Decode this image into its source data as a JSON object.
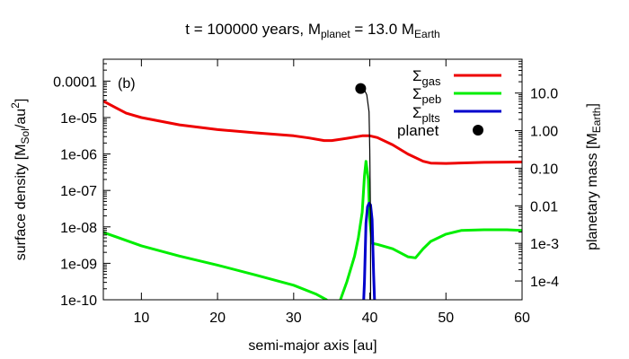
{
  "chart_data": {
    "type": "line",
    "title": {
      "prefix": "t = 100000 years, M",
      "sub1": "planet",
      "mid": " = 13.0 M",
      "sub2": "Earth"
    },
    "panel_label": "(b)",
    "xlabel": "semi-major axis [au]",
    "ylabel_left": {
      "prefix": "surface density [M",
      "sub": "Sol",
      "mid": "/au",
      "sup": "2",
      "suffix": "]"
    },
    "ylabel_right": {
      "prefix": "planetary mass [M",
      "sub": "Earth",
      "suffix": "]"
    },
    "xlim": [
      5,
      60
    ],
    "x_ticks": [
      10,
      20,
      30,
      40,
      50,
      60
    ],
    "x_tick_labels": [
      "10",
      "20",
      "30",
      "40",
      "50",
      "60"
    ],
    "ylim_left_log10": [
      -10,
      -3.4
    ],
    "y_ticks_left_log10": [
      -10,
      -9,
      -8,
      -7,
      -6,
      -5,
      -4
    ],
    "y_tick_labels_left": [
      "1e-10",
      "1e-09",
      "1e-08",
      "1e-07",
      "1e-06",
      "1e-05",
      "0.0001"
    ],
    "ylim_right_log10": [
      -4.5,
      1.9
    ],
    "y_ticks_right_log10": [
      -4,
      -3,
      -2,
      -1,
      0,
      1
    ],
    "y_tick_labels_right": [
      "1e-4",
      "1e-3",
      "0.01",
      "0.10",
      "1.00",
      "10.0"
    ],
    "legend": [
      {
        "key": "gas",
        "base": "Σ",
        "sub": "gas",
        "color": "#ee0000"
      },
      {
        "key": "peb",
        "base": "Σ",
        "sub": "peb",
        "color": "#00ee00"
      },
      {
        "key": "plts",
        "base": "Σ",
        "sub": "plts",
        "color": "#0000cc"
      },
      {
        "key": "planet",
        "label": "planet",
        "color": "#000000"
      }
    ],
    "series": [
      {
        "name": "gas",
        "color": "#ee0000",
        "x": [
          5,
          8,
          10,
          15,
          20,
          25,
          30,
          32,
          34,
          35,
          37,
          39,
          40,
          41,
          43,
          45,
          47,
          48,
          50,
          55,
          60
        ],
        "y_log10": [
          -4.55,
          -4.88,
          -5.0,
          -5.2,
          -5.33,
          -5.42,
          -5.5,
          -5.56,
          -5.63,
          -5.63,
          -5.57,
          -5.5,
          -5.5,
          -5.55,
          -5.75,
          -6.0,
          -6.2,
          -6.25,
          -6.26,
          -6.23,
          -6.22
        ]
      },
      {
        "name": "peb",
        "color": "#00ee00",
        "x": [
          5,
          10,
          15,
          20,
          25,
          30,
          33,
          34.3,
          35,
          36,
          37,
          38,
          38.5,
          39,
          39.3,
          39.5,
          39.8,
          40,
          40.3,
          41,
          43,
          45,
          46,
          47,
          48,
          50,
          52,
          55,
          58,
          60
        ],
        "y_log10": [
          -8.15,
          -8.52,
          -8.8,
          -9.05,
          -9.32,
          -9.6,
          -9.85,
          -10.0,
          -10.2,
          -10.08,
          -9.5,
          -8.8,
          -8.3,
          -7.6,
          -6.6,
          -6.2,
          -6.7,
          -7.8,
          -8.45,
          -8.48,
          -8.6,
          -8.82,
          -8.85,
          -8.6,
          -8.4,
          -8.2,
          -8.1,
          -8.08,
          -8.08,
          -8.1
        ]
      },
      {
        "name": "plts",
        "color": "#0000cc",
        "x": [
          39.1,
          39.3,
          39.5,
          39.7,
          39.9,
          40.1,
          40.3,
          40.5,
          40.7
        ],
        "y_log10": [
          -10.5,
          -9.5,
          -7.9,
          -7.45,
          -7.35,
          -7.4,
          -7.8,
          -9.3,
          -10.5
        ]
      },
      {
        "name": "planet track",
        "color": "#000000",
        "x": [
          38.9,
          39.3,
          39.6,
          39.9,
          40.0,
          40.1,
          40.1
        ],
        "mass_log10": [
          1.12,
          1.08,
          0.95,
          0.5,
          -0.5,
          -2.5,
          -4.5
        ]
      }
    ],
    "planet_point": {
      "x": 38.8,
      "mass_log10": 1.12
    }
  }
}
